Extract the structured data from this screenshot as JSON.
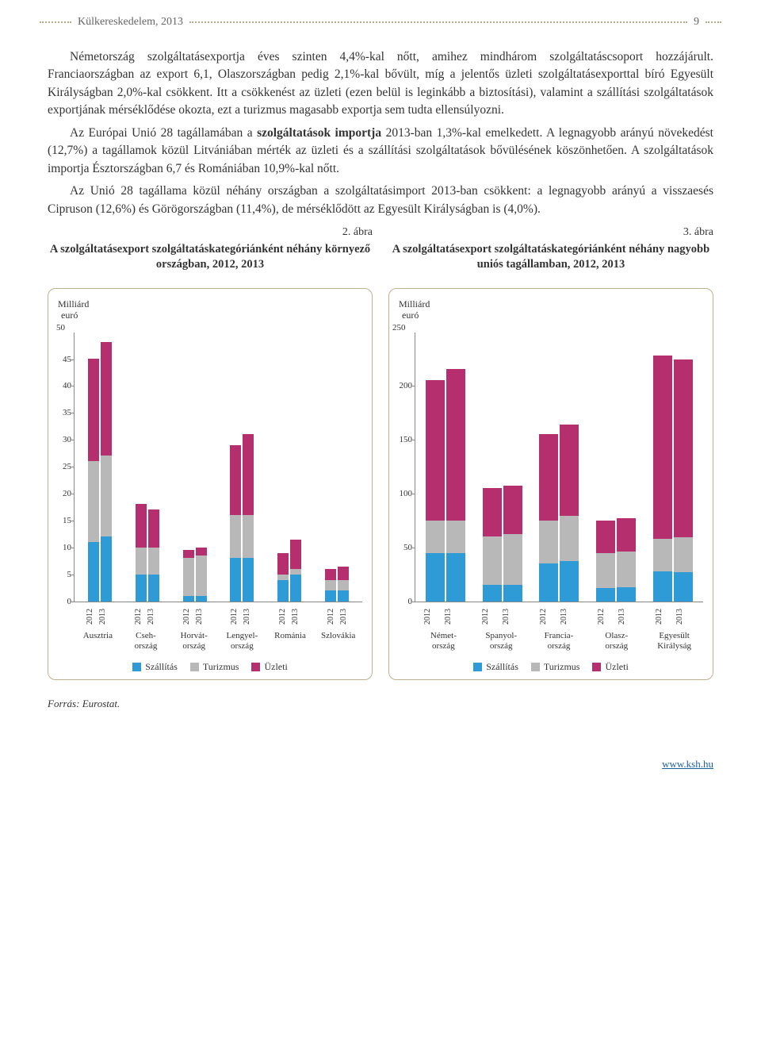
{
  "header": {
    "title": "Külkereskedelem, 2013",
    "page_number": "9"
  },
  "paragraphs": {
    "p1a": "Németország szolgáltatásexportja éves szinten 4,4%-kal nőtt, amihez mindhárom szolgáltatáscsoport hozzájárult. Franciaországban az export 6,1, Olaszországban pedig 2,1%-kal bővült, míg a jelentős üzleti szolgáltatásexporttal bíró Egyesült Királyságban 2,0%-kal csökkent. Itt a csökkenést az üzleti (ezen belül is leginkább a biztosítási), valamint a szállítási szolgáltatások exportjának mérséklődése okozta, ezt a turizmus magasabb exportja sem tudta ellensúlyozni.",
    "p2a": "Az Európai Unió 28 tagállamában a ",
    "p2b": "szolgáltatások importja",
    "p2c": " 2013-ban 1,3%-kal emelkedett. A legnagyobb arányú növekedést (12,7%) a tagállamok közül Litvániában mérték az üzleti és a szállítási szolgáltatások bővülésének köszönhetően. A szolgáltatások importja Észtországban 6,7 és Romániában 10,9%-kal nőtt.",
    "p3": "Az Unió 28 tagállama közül néhány országban a szolgáltatásimport 2013-ban csökkent: a legnagyobb arányú a visszaesés Cipruson (12,6%) és Görögországban (11,4%), de mérséklődött az Egyesült Királyságban is (4,0%)."
  },
  "figures": {
    "left": {
      "num": "2. ábra",
      "title": "A szolgáltatásexport szolgáltatáskategóriánként néhány környező országban, 2012, 2013"
    },
    "right": {
      "num": "3. ábra",
      "title": "A szolgáltatásexport szolgáltatáskategóriánként néhány nagyobb uniós tagállamban, 2012, 2013"
    }
  },
  "colors": {
    "szallitas": "#2e9bd6",
    "turizmus": "#b8b8b8",
    "uzleti": "#b52e6e",
    "axis": "#888888",
    "border": "#c0b090"
  },
  "legend": {
    "szallitas": "Szállítás",
    "turizmus": "Turizmus",
    "uzleti": "Üzleti"
  },
  "chart_left": {
    "ylabel1": "Milliárd",
    "ylabel2": "euró",
    "ymax": 50,
    "ytick_step": 5,
    "yticks": [
      0,
      5,
      10,
      15,
      20,
      25,
      30,
      35,
      40,
      45,
      50
    ],
    "countries": [
      {
        "name": "Ausztria",
        "years": [
          {
            "y": "2012",
            "szallitas": 11,
            "turizmus": 15,
            "uzleti": 19
          },
          {
            "y": "2013",
            "szallitas": 12,
            "turizmus": 15,
            "uzleti": 21
          }
        ]
      },
      {
        "name": "Cseh-\nország",
        "years": [
          {
            "y": "2012",
            "szallitas": 5,
            "turizmus": 5,
            "uzleti": 8
          },
          {
            "y": "2013",
            "szallitas": 5,
            "turizmus": 5,
            "uzleti": 7
          }
        ]
      },
      {
        "name": "Horvát-\nország",
        "years": [
          {
            "y": "2012",
            "szallitas": 1,
            "turizmus": 7,
            "uzleti": 1.5
          },
          {
            "y": "2013",
            "szallitas": 1,
            "turizmus": 7.5,
            "uzleti": 1.5
          }
        ]
      },
      {
        "name": "Lengyel-\nország",
        "years": [
          {
            "y": "2012",
            "szallitas": 8,
            "turizmus": 8,
            "uzleti": 13
          },
          {
            "y": "2013",
            "szallitas": 8,
            "turizmus": 8,
            "uzleti": 15
          }
        ]
      },
      {
        "name": "Románia",
        "years": [
          {
            "y": "2012",
            "szallitas": 4,
            "turizmus": 1,
            "uzleti": 4
          },
          {
            "y": "2013",
            "szallitas": 5,
            "turizmus": 1,
            "uzleti": 5.5
          }
        ]
      },
      {
        "name": "Szlovákia",
        "years": [
          {
            "y": "2012",
            "szallitas": 2,
            "turizmus": 2,
            "uzleti": 2
          },
          {
            "y": "2013",
            "szallitas": 2,
            "turizmus": 2,
            "uzleti": 2.5
          }
        ]
      }
    ]
  },
  "chart_right": {
    "ylabel1": "Milliárd",
    "ylabel2": "euró",
    "ymax": 250,
    "ytick_step": 50,
    "yticks": [
      0,
      50,
      100,
      150,
      200,
      250
    ],
    "countries": [
      {
        "name": "Német-\nország",
        "years": [
          {
            "y": "2012",
            "szallitas": 45,
            "turizmus": 30,
            "uzleti": 130
          },
          {
            "y": "2013",
            "szallitas": 45,
            "turizmus": 30,
            "uzleti": 140
          }
        ]
      },
      {
        "name": "Spanyol-\nország",
        "years": [
          {
            "y": "2012",
            "szallitas": 15,
            "turizmus": 45,
            "uzleti": 45
          },
          {
            "y": "2013",
            "szallitas": 15,
            "turizmus": 47,
            "uzleti": 45
          }
        ]
      },
      {
        "name": "Francia-\nország",
        "years": [
          {
            "y": "2012",
            "szallitas": 35,
            "turizmus": 40,
            "uzleti": 80
          },
          {
            "y": "2013",
            "szallitas": 37,
            "turizmus": 42,
            "uzleti": 85
          }
        ]
      },
      {
        "name": "Olasz-\nország",
        "years": [
          {
            "y": "2012",
            "szallitas": 12,
            "turizmus": 33,
            "uzleti": 30
          },
          {
            "y": "2013",
            "szallitas": 13,
            "turizmus": 33,
            "uzleti": 31
          }
        ]
      },
      {
        "name": "Egyesült\nKirályság",
        "years": [
          {
            "y": "2012",
            "szallitas": 28,
            "turizmus": 30,
            "uzleti": 170
          },
          {
            "y": "2013",
            "szallitas": 27,
            "turizmus": 32,
            "uzleti": 165
          }
        ]
      }
    ]
  },
  "source": "Forrás: Eurostat.",
  "footer_link": "www.ksh.hu"
}
